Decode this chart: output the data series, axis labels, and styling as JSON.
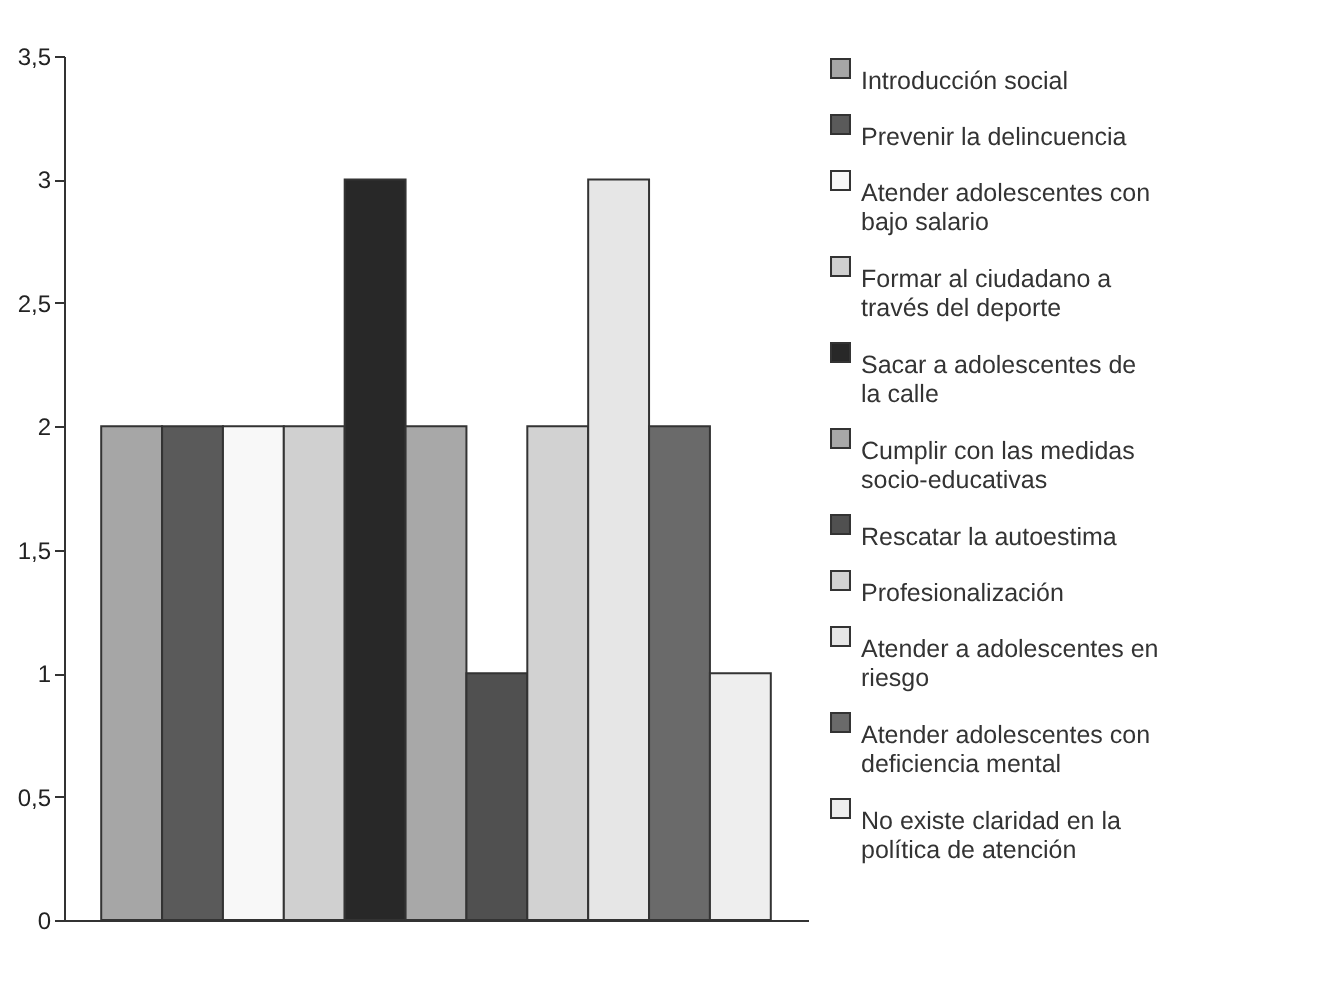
{
  "chart_data": {
    "type": "bar",
    "categories": [
      null
    ],
    "series": [
      {
        "name": "Introducción social",
        "color": "#a6a6a6",
        "values": [
          2
        ]
      },
      {
        "name": "Prevenir la delincuencia",
        "color": "#5a5a5a",
        "values": [
          2
        ]
      },
      {
        "name": "Atender adolescentes con bajo salario",
        "color": "#f8f8f8",
        "values": [
          2
        ]
      },
      {
        "name": "Formar al ciudadano a través del deporte",
        "color": "#d0d0d0",
        "values": [
          2
        ]
      },
      {
        "name": "Sacar a adolescentes de la calle",
        "color": "#282828",
        "values": [
          3
        ]
      },
      {
        "name": "Cumplir con las medidas socio-educativas",
        "color": "#a8a8a8",
        "values": [
          2
        ]
      },
      {
        "name": "Rescatar la autoestima",
        "color": "#505050",
        "values": [
          1
        ]
      },
      {
        "name": "Profesionalización",
        "color": "#d2d2d2",
        "values": [
          2
        ]
      },
      {
        "name": "Atender a adolescentes en riesgo",
        "color": "#e6e6e6",
        "values": [
          3
        ]
      },
      {
        "name": "Atender adolescentes con deficiencia mental",
        "color": "#6a6a6a",
        "values": [
          2
        ]
      },
      {
        "name": "No existe claridad en la política de atención",
        "color": "#eeeeee",
        "values": [
          1
        ]
      }
    ],
    "ylim": [
      0,
      3.5
    ],
    "yticks": [
      0,
      {
        "value": 0.5,
        "label": "0,5"
      },
      1,
      {
        "value": 1.5,
        "label": "1,5"
      },
      2,
      {
        "value": 2.5,
        "label": "2,5"
      },
      3,
      {
        "value": 3.5,
        "label": "3,5"
      }
    ],
    "grid": false,
    "legend": "right",
    "tick_labels": "y"
  }
}
